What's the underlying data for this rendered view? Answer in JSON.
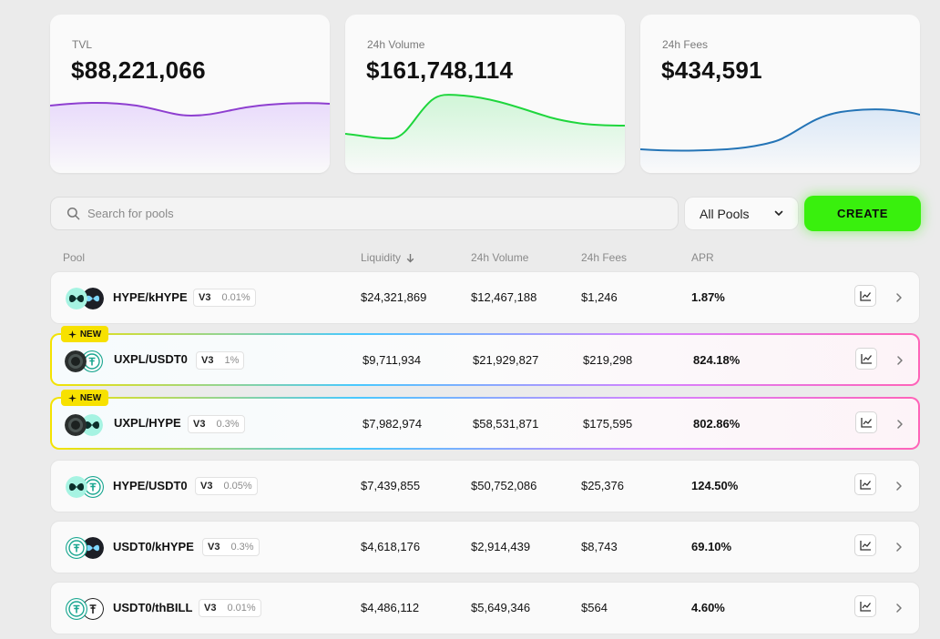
{
  "stats": [
    {
      "label": "TVL",
      "value": "$88,221,066",
      "color": "#8e3fd0",
      "fill": "#e7d8fb"
    },
    {
      "label": "24h Volume",
      "value": "$161,748,114",
      "color": "#1fd63d",
      "fill": "#ccf5d4"
    },
    {
      "label": "24h Fees",
      "value": "$434,591",
      "color": "#2474b6",
      "fill": "#d8e6f6"
    }
  ],
  "search": {
    "placeholder": "Search for pools",
    "icon": "search-icon"
  },
  "filter": {
    "selected": "All Pools"
  },
  "create_label": "CREATE",
  "columns": {
    "pool": "Pool",
    "liquidity": "Liquidity",
    "volume": "24h Volume",
    "fees": "24h Fees",
    "apr": "APR"
  },
  "new_label": "NEW",
  "colors": {
    "accent": "#39f00d",
    "badge": "#f7e100"
  },
  "pools": [
    {
      "pair": "HYPE/kHYPE",
      "version": "V3",
      "fee": "0.01%",
      "liquidity": "$24,321,869",
      "volume": "$12,467,188",
      "fees": "$1,246",
      "apr": "1.87%",
      "is_new": false,
      "tokens": [
        "hype",
        "khype"
      ]
    },
    {
      "pair": "UXPL/USDT0",
      "version": "V3",
      "fee": "1%",
      "liquidity": "$9,711,934",
      "volume": "$21,929,827",
      "fees": "$219,298",
      "apr": "824.18%",
      "is_new": true,
      "tokens": [
        "uxpl",
        "usdt0"
      ]
    },
    {
      "pair": "UXPL/HYPE",
      "version": "V3",
      "fee": "0.3%",
      "liquidity": "$7,982,974",
      "volume": "$58,531,871",
      "fees": "$175,595",
      "apr": "802.86%",
      "is_new": true,
      "tokens": [
        "uxpl",
        "hype"
      ]
    },
    {
      "pair": "HYPE/USDT0",
      "version": "V3",
      "fee": "0.05%",
      "liquidity": "$7,439,855",
      "volume": "$50,752,086",
      "fees": "$25,376",
      "apr": "124.50%",
      "is_new": false,
      "tokens": [
        "hype",
        "usdt0"
      ]
    },
    {
      "pair": "USDT0/kHYPE",
      "version": "V3",
      "fee": "0.3%",
      "liquidity": "$4,618,176",
      "volume": "$2,914,439",
      "fees": "$8,743",
      "apr": "69.10%",
      "is_new": false,
      "tokens": [
        "usdt0",
        "khype"
      ]
    },
    {
      "pair": "USDT0/thBILL",
      "version": "V3",
      "fee": "0.01%",
      "liquidity": "$4,486,112",
      "volume": "$5,649,346",
      "fees": "$564",
      "apr": "4.60%",
      "is_new": false,
      "tokens": [
        "usdt0",
        "thbill"
      ]
    }
  ]
}
